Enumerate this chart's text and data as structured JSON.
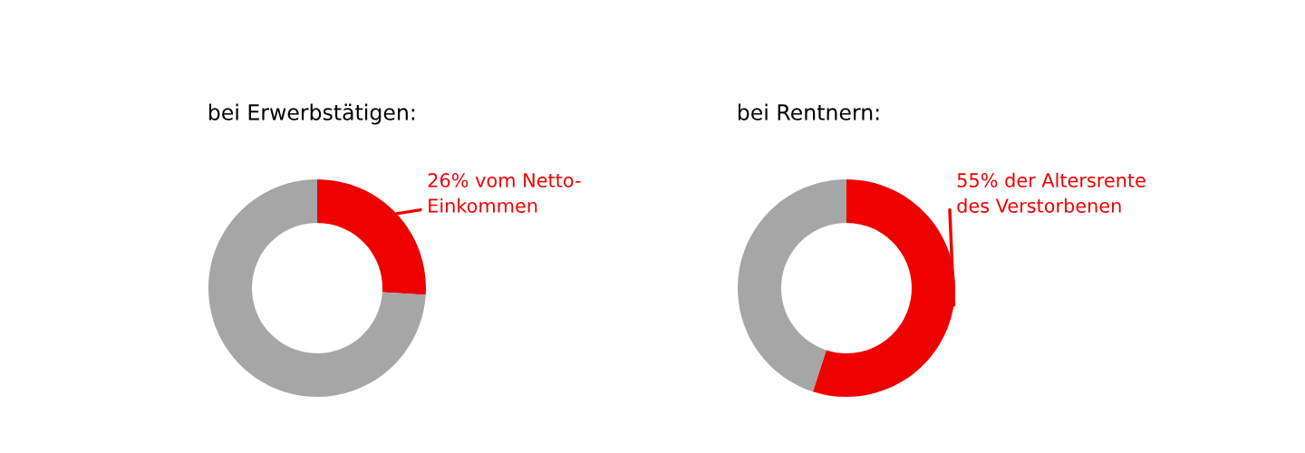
{
  "chart_data": [
    {
      "type": "donut",
      "title": "bei Erwerbstätigen:",
      "categories": [
        "26% vom Netto-\nEinkommen",
        null
      ],
      "values": [
        26,
        74
      ],
      "colors": [
        "#ee0000",
        "#a6a6a6"
      ]
    },
    {
      "type": "donut",
      "title": "bei Rentnern:",
      "categories": [
        "55% der Altersrente\ndes Verstorbenen",
        null
      ],
      "values": [
        55,
        45
      ],
      "colors": [
        "#ee0000",
        "#a6a6a6"
      ]
    }
  ]
}
